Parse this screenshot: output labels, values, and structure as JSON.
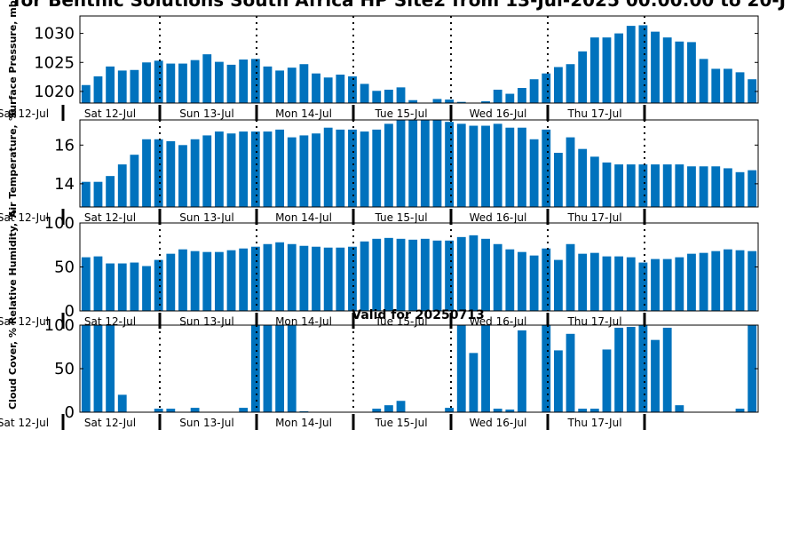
{
  "title": "for Benthic Solutions South Africa HP Site2 from 13-Jul-2025 00:00:00 to 20-J",
  "valid_label": "Valid for 20250713",
  "bar_color": "#0072bd",
  "day_labels": [
    "Sat 12-Jul",
    "Sat 12-Jul",
    "Sun 13-Jul",
    "Mon 14-Jul",
    "Tue 15-Jul",
    "Wed 16-Jul",
    "Thu 17-Jul"
  ],
  "chart_data": [
    {
      "type": "bar",
      "ylabel": "Surface Pressure, mb",
      "ylim": [
        1018,
        1033
      ],
      "yticks": [
        1020,
        1025,
        1030
      ],
      "grid": false,
      "series": [
        {
          "values": [
            1021.1,
            1022.6,
            1024.3,
            1023.6,
            1023.7,
            1025.0,
            1025.3,
            1024.8,
            1024.8,
            1025.4,
            1026.4,
            1025.1,
            1024.6,
            1025.5,
            1025.6,
            1024.3,
            1023.6,
            1024.1,
            1024.7,
            1023.1,
            1022.4,
            1022.9,
            1022.6,
            1021.3,
            1020.1,
            1020.3,
            1020.7,
            1018.5,
            1017.9,
            1018.7,
            1018.6,
            1018.2,
            1017.6,
            1018.3,
            1020.3,
            1019.6,
            1020.6,
            1022.1,
            1023.1,
            1024.2,
            1024.7,
            1026.9,
            1029.3,
            1029.3,
            1030.0,
            1031.3,
            1031.4,
            1030.3,
            1029.3,
            1028.6,
            1028.5,
            1025.6,
            1023.9,
            1023.9,
            1023.3,
            1022.1
          ]
        }
      ]
    },
    {
      "type": "bar",
      "ylabel": "Air Temperature, °C",
      "ylim": [
        12.8,
        17.3
      ],
      "yticks": [
        14,
        16
      ],
      "grid": false,
      "series": [
        {
          "values": [
            14.1,
            14.1,
            14.4,
            15.0,
            15.5,
            16.3,
            16.3,
            16.2,
            16.0,
            16.3,
            16.5,
            16.7,
            16.6,
            16.7,
            16.7,
            16.7,
            16.8,
            16.4,
            16.5,
            16.6,
            16.9,
            16.8,
            16.8,
            16.7,
            16.8,
            17.1,
            17.3,
            17.4,
            17.4,
            17.3,
            17.2,
            17.1,
            17.0,
            17.0,
            17.1,
            16.9,
            16.9,
            16.3,
            16.8,
            15.6,
            16.4,
            15.8,
            15.4,
            15.1,
            15.0,
            15.0,
            15.0,
            15.0,
            15.0,
            15.0,
            14.9,
            14.9,
            14.9,
            14.8,
            14.6,
            14.7
          ]
        }
      ]
    },
    {
      "type": "bar",
      "ylabel": "Relative Humidity, %",
      "ylim": [
        0,
        100
      ],
      "yticks": [
        0,
        50,
        100
      ],
      "grid": false,
      "series": [
        {
          "values": [
            61,
            62,
            54,
            54,
            55,
            51,
            58,
            65,
            70,
            68,
            67,
            67,
            69,
            71,
            73,
            76,
            78,
            76,
            74,
            73,
            72,
            72,
            73,
            79,
            82,
            83,
            82,
            81,
            82,
            80,
            80,
            84,
            86,
            82,
            76,
            70,
            67,
            63,
            71,
            58,
            76,
            65,
            66,
            62,
            62,
            61,
            55,
            59,
            59,
            61,
            65,
            66,
            68,
            70,
            69,
            68
          ]
        }
      ]
    },
    {
      "type": "bar",
      "ylabel": "Cloud Cover, %",
      "ylim": [
        0,
        100
      ],
      "yticks": [
        0,
        50,
        100
      ],
      "grid": false,
      "series": [
        {
          "values": [
            100,
            100,
            100,
            20,
            0,
            0,
            4,
            4,
            0,
            5,
            0,
            0,
            0,
            5,
            100,
            100,
            100,
            100,
            1,
            0,
            0,
            0,
            0,
            0,
            4,
            8,
            13,
            0,
            0,
            0,
            5,
            100,
            68,
            100,
            4,
            3,
            94,
            0,
            100,
            71,
            90,
            4,
            4,
            72,
            97,
            98,
            100,
            83,
            97,
            8,
            0,
            0,
            0,
            0,
            4,
            100
          ]
        }
      ]
    }
  ]
}
